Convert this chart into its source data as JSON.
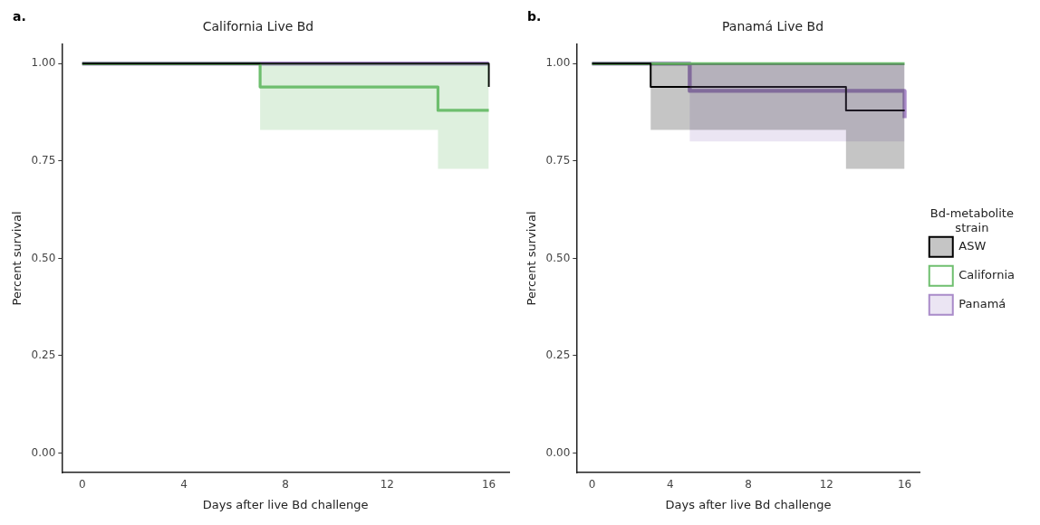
{
  "chart_data": [
    {
      "type": "step",
      "title": "California Live Bd",
      "xlabel": "Days after live Bd challenge",
      "ylabel": "Percent survival",
      "annotations": [
        "a."
      ],
      "xlim": [
        -0.8,
        16.8
      ],
      "xticks": [
        0,
        4,
        8,
        12,
        16
      ],
      "ylim": [
        -0.05,
        1.05
      ],
      "yticks": [
        {
          "value": 0,
          "label": "0.00"
        },
        {
          "value": 0.25,
          "label": "0.25"
        },
        {
          "value": 0.5,
          "label": "0.50"
        },
        {
          "value": 0.75,
          "label": "0.75"
        },
        {
          "value": 1,
          "label": "1.00"
        }
      ],
      "grid": false,
      "legend": false,
      "series": [
        {
          "color": "#000000",
          "x": [
            0,
            16,
            16
          ],
          "values": [
            1,
            1,
            0.94
          ]
        },
        {
          "color": "#6fbf6f",
          "x": [
            0,
            7,
            14,
            16
          ],
          "values": [
            1,
            0.94,
            0.88,
            0.88
          ],
          "lower": [
            1,
            0.83,
            0.73,
            0.73
          ],
          "upper": [
            1,
            1,
            1,
            1
          ]
        },
        {
          "color": "#a98bc9",
          "x": [
            0,
            16
          ],
          "values": [
            1,
            1
          ]
        }
      ]
    },
    {
      "type": "step",
      "title": "Panamá Live Bd",
      "xlabel": "Days after live Bd challenge",
      "ylabel": "Percent survival",
      "legend_title": "Bd-metabolite strain",
      "annotations": [
        "b."
      ],
      "xlim": [
        -0.8,
        16.8
      ],
      "xticks": [
        0,
        4,
        8,
        12,
        16
      ],
      "ylim": [
        -0.05,
        1.05
      ],
      "yticks": [
        {
          "value": 0,
          "label": "0.00"
        },
        {
          "value": 0.25,
          "label": "0.25"
        },
        {
          "value": 0.5,
          "label": "0.50"
        },
        {
          "value": 0.75,
          "label": "0.75"
        },
        {
          "value": 1,
          "label": "1.00"
        }
      ],
      "grid": false,
      "legend": "right",
      "series": [
        {
          "name": "ASW",
          "color": "#000000",
          "x": [
            0,
            3,
            13,
            16
          ],
          "values": [
            1,
            0.94,
            0.88,
            0.88
          ],
          "lower": [
            1,
            0.83,
            0.73,
            0.73
          ],
          "upper": [
            1,
            1,
            1,
            1
          ]
        },
        {
          "name": "California",
          "color": "#6fbf6f",
          "x": [
            0,
            16
          ],
          "values": [
            1,
            1
          ]
        },
        {
          "name": "Panamá",
          "color": "#a98bc9",
          "x": [
            0,
            5,
            16,
            16
          ],
          "values": [
            1,
            0.93,
            0.93,
            0.86
          ],
          "lower": [
            1,
            0.8,
            0.8,
            0.8
          ],
          "upper": [
            1,
            1,
            1,
            1
          ]
        }
      ]
    }
  ]
}
